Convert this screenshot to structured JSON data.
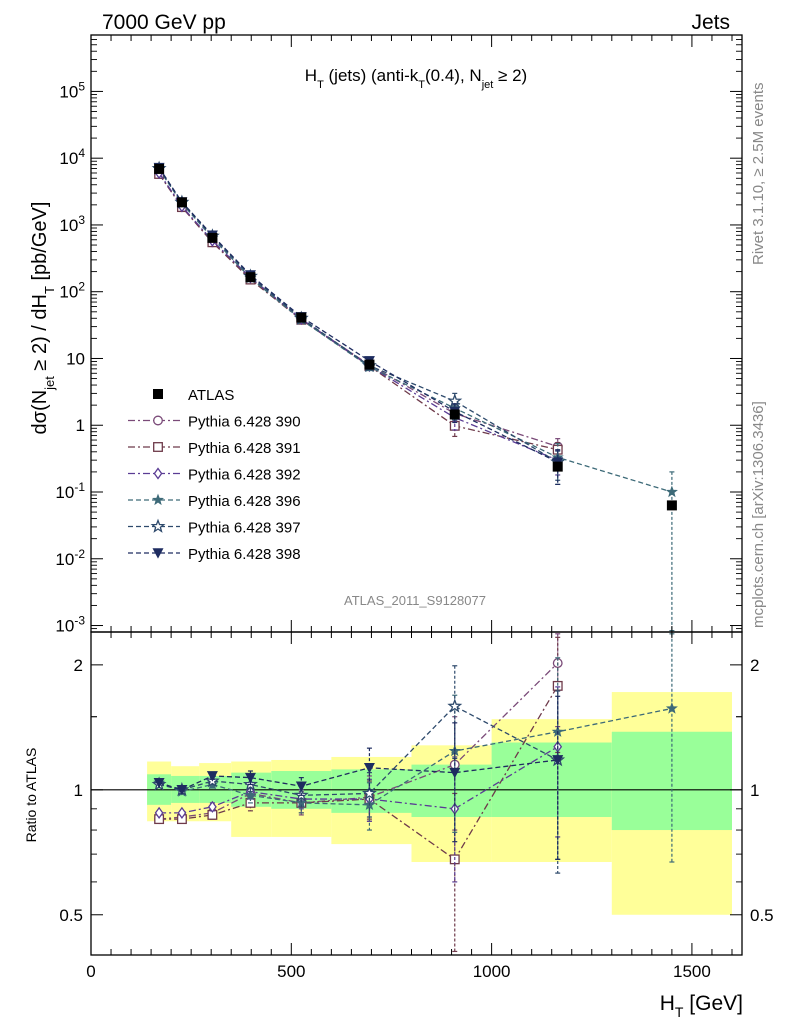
{
  "header": {
    "left": "7000 GeV pp",
    "right": "Jets"
  },
  "side": {
    "rivet": "Rivet 3.1.10, ≥ 2.5M events",
    "mcplots": "mcplots.cern.ch [arXiv:1306.3436]"
  },
  "analysis_id": "ATLAS_2011_S9128077",
  "colors": {
    "c390": "#7a4a78",
    "c391": "#6e3a4a",
    "c392": "#5a3c94",
    "c396": "#3d6a78",
    "c397": "#2e4a6c",
    "c398": "#1e2c60",
    "atlas": "#000000",
    "band_inner": "#99ff99",
    "band_outer": "#ffff99"
  },
  "chart_data": [
    {
      "type": "scatter",
      "panel": "main",
      "title_parts": {
        "a": "H",
        "a_sub": "T",
        "b": " (jets) (anti-k",
        "b_sub": "T",
        "c": "(0.4), N",
        "c_sub": "jet",
        "d": " ≥ 2)"
      },
      "ylabel_parts": {
        "a": "dσ(N",
        "a_sub": "jet",
        "b": " ≥ 2) / dH",
        "b_sub": "T",
        "c": " [pb/GeV]"
      },
      "yscale": "log",
      "xlim": [
        0,
        1625
      ],
      "ylim": [
        0.0008,
        700000
      ],
      "yticks": [
        {
          "v": 0.001,
          "m": "10",
          "e": "-3"
        },
        {
          "v": 0.01,
          "m": "10",
          "e": "-2"
        },
        {
          "v": 0.1,
          "m": "10",
          "e": "-1"
        },
        {
          "v": 1,
          "m": "1",
          "e": ""
        },
        {
          "v": 10,
          "m": "10",
          "e": ""
        },
        {
          "v": 100,
          "m": "10",
          "e": "2"
        },
        {
          "v": 1000,
          "m": "10",
          "e": "3"
        },
        {
          "v": 10000,
          "m": "10",
          "e": "4"
        },
        {
          "v": 100000,
          "m": "10",
          "e": "5"
        }
      ],
      "legend_position": "middle-left",
      "data": {
        "name": "ATLAS",
        "x": [
          170,
          227,
          303,
          398,
          525,
          695,
          908,
          1165,
          1450
        ],
        "y": [
          6900,
          2180,
          640,
          165,
          41,
          8.1,
          1.45,
          0.24,
          0.063
        ]
      },
      "series": [
        {
          "name": "Pythia 6.428 390",
          "key": "c390",
          "marker": "circle",
          "dash": "dashdot",
          "y": [
            5800,
            1850,
            550,
            158,
            38.5,
            8.0,
            1.5,
            0.48
          ],
          "err": [
            0,
            0,
            0,
            0,
            0,
            1.0,
            0.5,
            0.15
          ]
        },
        {
          "name": "Pythia 6.428 391",
          "key": "c391",
          "marker": "square",
          "dash": "dashdot",
          "y": [
            5800,
            1850,
            550,
            152,
            38,
            7.7,
            0.98,
            0.43
          ],
          "err": [
            0,
            0,
            0,
            0,
            0,
            0.9,
            0.3,
            0.12
          ]
        },
        {
          "name": "Pythia 6.428 392",
          "key": "c392",
          "marker": "diamond",
          "dash": "dashdot",
          "y": [
            6000,
            1900,
            580,
            163,
            39,
            7.7,
            1.3,
            0.3
          ],
          "err": [
            0,
            0,
            0,
            0,
            0,
            0.9,
            0.45,
            0.12
          ]
        },
        {
          "name": "Pythia 6.428 396",
          "key": "c396",
          "marker": "star",
          "dash": "dashed",
          "y": [
            6800,
            2100,
            640,
            160,
            38,
            7.5,
            1.8,
            0.33,
            0.1
          ],
          "err": [
            0,
            0,
            0,
            0,
            0,
            0.9,
            0.6,
            0.2,
            0.1
          ]
        },
        {
          "name": "Pythia 6.428 397",
          "key": "c397",
          "marker": "star_open",
          "dash": "dashed",
          "y": [
            7000,
            2180,
            680,
            170,
            40,
            7.8,
            2.3,
            0.28
          ],
          "err": [
            0,
            0,
            0,
            0,
            0,
            1.0,
            0.7,
            0.13
          ]
        },
        {
          "name": "Pythia 6.428 398",
          "key": "c398",
          "marker": "tri_down",
          "dash": "dashed",
          "y": [
            7200,
            2200,
            700,
            178,
            42,
            9.2,
            1.6,
            0.28
          ],
          "err": [
            0,
            0,
            0,
            0,
            0,
            1.0,
            0.5,
            0.15
          ]
        }
      ]
    },
    {
      "type": "scatter",
      "panel": "ratio",
      "ylabel": "Ratio to ATLAS",
      "yscale": "log",
      "xlim": [
        0,
        1625
      ],
      "ylim": [
        0.4,
        2.4
      ],
      "yticks": [
        0.5,
        1,
        2
      ],
      "xticks": [
        0,
        500,
        1000,
        1500
      ],
      "xlabel_parts": {
        "a": "H",
        "a_sub": "T",
        "b": " [GeV]"
      },
      "reference": 1,
      "bins": [
        {
          "x0": 140,
          "x1": 200,
          "inner": [
            0.92,
            1.09
          ],
          "outer": [
            0.84,
            1.17
          ]
        },
        {
          "x0": 200,
          "x1": 270,
          "inner": [
            0.93,
            1.08
          ],
          "outer": [
            0.84,
            1.14
          ]
        },
        {
          "x0": 270,
          "x1": 350,
          "inner": [
            0.93,
            1.08
          ],
          "outer": [
            0.84,
            1.16
          ]
        },
        {
          "x0": 350,
          "x1": 450,
          "inner": [
            0.91,
            1.1
          ],
          "outer": [
            0.77,
            1.17
          ]
        },
        {
          "x0": 450,
          "x1": 600,
          "inner": [
            0.9,
            1.11
          ],
          "outer": [
            0.77,
            1.18
          ]
        },
        {
          "x0": 600,
          "x1": 800,
          "inner": [
            0.88,
            1.12
          ],
          "outer": [
            0.74,
            1.2
          ]
        },
        {
          "x0": 800,
          "x1": 1000,
          "inner": [
            0.86,
            1.15
          ],
          "outer": [
            0.67,
            1.28
          ]
        },
        {
          "x0": 1000,
          "x1": 1300,
          "inner": [
            0.86,
            1.3
          ],
          "outer": [
            0.67,
            1.48
          ]
        },
        {
          "x0": 1300,
          "x1": 1600,
          "inner": [
            0.8,
            1.38
          ],
          "outer": [
            0.5,
            1.72
          ]
        }
      ],
      "series": [
        {
          "key": "c390",
          "marker": "circle",
          "dash": "dashdot",
          "y": [
            0.85,
            0.86,
            0.88,
            0.98,
            0.93,
            0.96,
            1.15,
            2.02
          ],
          "err": [
            0,
            0,
            0.02,
            0.04,
            0.06,
            0.12,
            0.35,
            0.6
          ]
        },
        {
          "key": "c391",
          "marker": "square",
          "dash": "dashdot",
          "y": [
            0.85,
            0.85,
            0.87,
            0.93,
            0.93,
            0.95,
            0.68,
            1.78
          ],
          "err": [
            0,
            0,
            0.02,
            0.04,
            0.05,
            0.1,
            0.3,
            0.55
          ]
        },
        {
          "key": "c392",
          "marker": "diamond",
          "dash": "dashdot",
          "y": [
            0.88,
            0.88,
            0.91,
            0.99,
            0.95,
            0.95,
            0.9,
            1.27
          ],
          "err": [
            0,
            0,
            0.02,
            0.04,
            0.05,
            0.11,
            0.3,
            0.5
          ]
        },
        {
          "key": "c396",
          "marker": "star",
          "dash": "dashed",
          "y": [
            1.04,
            0.99,
            1.03,
            0.97,
            0.93,
            0.92,
            1.24,
            1.38,
            1.57
          ],
          "err": [
            0,
            0,
            0.02,
            0.04,
            0.05,
            0.12,
            0.45,
            0.7,
            0.9
          ]
        },
        {
          "key": "c397",
          "marker": "star_open",
          "dash": "dashed",
          "y": [
            1.03,
            1.0,
            1.05,
            1.03,
            0.97,
            0.98,
            1.59,
            1.18
          ],
          "err": [
            0,
            0,
            0.02,
            0.04,
            0.06,
            0.12,
            0.4,
            0.55
          ]
        },
        {
          "key": "c398",
          "marker": "tri_down",
          "dash": "dashed",
          "y": [
            1.04,
            1.0,
            1.08,
            1.07,
            1.02,
            1.13,
            1.1,
            1.18
          ],
          "err": [
            0,
            0,
            0.02,
            0.04,
            0.05,
            0.13,
            0.35,
            0.5
          ]
        }
      ]
    }
  ]
}
